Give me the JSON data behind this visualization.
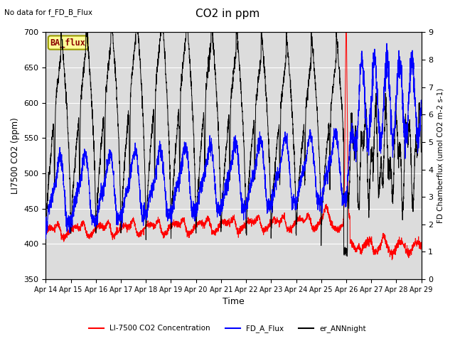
{
  "title": "CO2 in ppm",
  "top_left_text": "No data for f_FD_B_Flux",
  "box_label": "BA_flux",
  "xlabel": "Time",
  "ylabel_left": "LI7500 CO2 (ppm)",
  "ylabel_right": "FD Chamberflux (umol CO2 m-2 s-1)",
  "ylim_left": [
    350,
    700
  ],
  "ylim_right": [
    0.0,
    9.0
  ],
  "yticks_left": [
    350,
    400,
    450,
    500,
    550,
    600,
    650,
    700
  ],
  "yticks_right": [
    0.0,
    1.0,
    2.0,
    3.0,
    4.0,
    5.0,
    6.0,
    7.0,
    8.0,
    9.0
  ],
  "xtick_labels": [
    "Apr 14",
    "Apr 15",
    "Apr 16",
    "Apr 17",
    "Apr 18",
    "Apr 19",
    "Apr 20",
    "Apr 21",
    "Apr 22",
    "Apr 23",
    "Apr 24",
    "Apr 25",
    "Apr 26",
    "Apr 27",
    "Apr 28",
    "Apr 29"
  ],
  "background_color": "#ffffff",
  "plot_bg_color": "#dcdcdc",
  "grid_color": "#ffffff",
  "legend_entries": [
    "LI-7500 CO2 Concentration",
    "FD_A_Flux",
    "er_ANNnight"
  ],
  "red_color": "#ff0000",
  "blue_color": "#0000ff",
  "black_color": "#000000",
  "n_days": 15,
  "n_pts": 3000
}
